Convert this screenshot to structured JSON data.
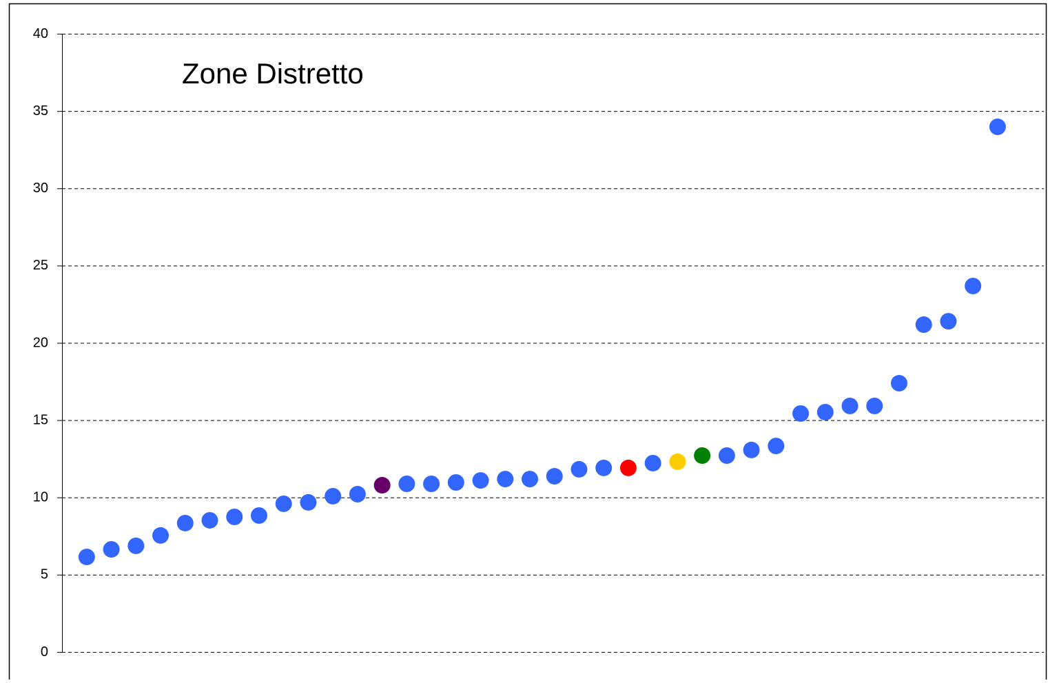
{
  "chart_data": {
    "type": "scatter",
    "title": "Zone Distretto",
    "categories": [
      null,
      null,
      null,
      null,
      null,
      null,
      null,
      null,
      null,
      null,
      null,
      null,
      null,
      null,
      null,
      null,
      null,
      null,
      null,
      null,
      null,
      null,
      null,
      null,
      null,
      null,
      null,
      null,
      null,
      null,
      null,
      null,
      null,
      null,
      null,
      null,
      null,
      null
    ],
    "values": [
      6.15,
      6.64,
      6.87,
      7.54,
      8.34,
      8.52,
      8.74,
      8.83,
      9.59,
      9.68,
      10.08,
      10.21,
      10.79,
      10.88,
      10.88,
      10.97,
      11.1,
      11.19,
      11.19,
      11.37,
      11.82,
      11.91,
      11.91,
      12.22,
      12.31,
      12.71,
      12.71,
      13.07,
      13.33,
      15.43,
      15.52,
      15.92,
      15.92,
      17.39,
      21.18,
      21.4,
      23.68,
      33.98
    ],
    "colors": [
      "#3366ff",
      "#3366ff",
      "#3366ff",
      "#3366ff",
      "#3366ff",
      "#3366ff",
      "#3366ff",
      "#3366ff",
      "#3366ff",
      "#3366ff",
      "#3366ff",
      "#3366ff",
      "#660066",
      "#3366ff",
      "#3366ff",
      "#3366ff",
      "#3366ff",
      "#3366ff",
      "#3366ff",
      "#3366ff",
      "#3366ff",
      "#3366ff",
      "#ff0000",
      "#3366ff",
      "#ffcc00",
      "#008000",
      "#3366ff",
      "#3366ff",
      "#3366ff",
      "#3366ff",
      "#3366ff",
      "#3366ff",
      "#3366ff",
      "#3366ff",
      "#3366ff",
      "#3366ff",
      "#3366ff",
      "#3366ff"
    ],
    "ylim": [
      0,
      40
    ],
    "yticks": [
      0,
      5,
      10,
      15,
      20,
      25,
      30,
      35,
      40
    ],
    "grid": true
  }
}
